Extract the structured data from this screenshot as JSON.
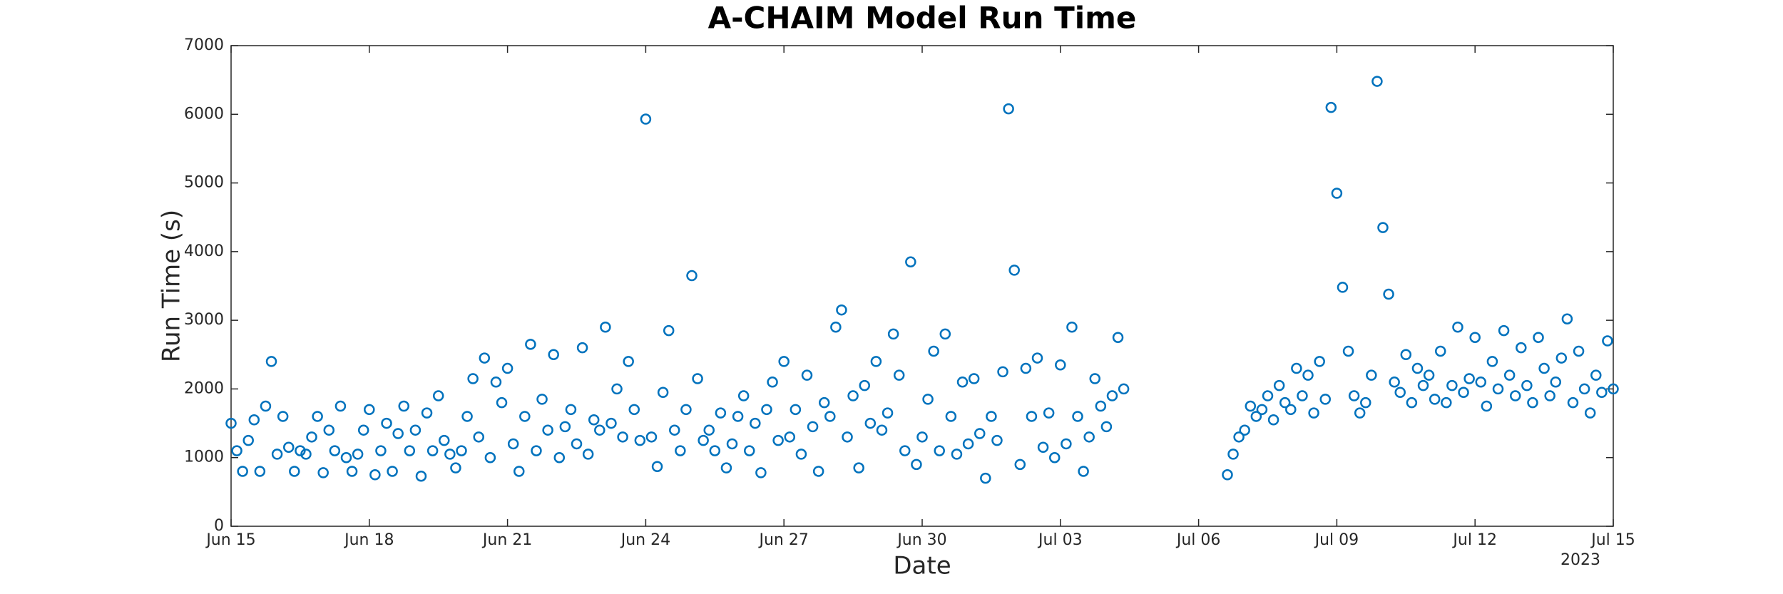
{
  "chart_data": {
    "type": "scatter",
    "title": "A-CHAIM Model Run Time",
    "x_label": "Date",
    "y_label": "Run Time (s)",
    "x_year_label": "2023",
    "color": "#0072bd",
    "grid": false,
    "xlim": [
      "2023-06-15T00",
      "2023-07-15T00"
    ],
    "xticks": [
      {
        "value": "2023-06-15T00",
        "label": "Jun 15"
      },
      {
        "value": "2023-06-18T00",
        "label": "Jun 18"
      },
      {
        "value": "2023-06-21T00",
        "label": "Jun 21"
      },
      {
        "value": "2023-06-24T00",
        "label": "Jun 24"
      },
      {
        "value": "2023-06-27T00",
        "label": "Jun 27"
      },
      {
        "value": "2023-06-30T00",
        "label": "Jun 30"
      },
      {
        "value": "2023-07-03T00",
        "label": "Jul 03"
      },
      {
        "value": "2023-07-06T00",
        "label": "Jul 06"
      },
      {
        "value": "2023-07-09T00",
        "label": "Jul 09"
      },
      {
        "value": "2023-07-12T00",
        "label": "Jul 12"
      },
      {
        "value": "2023-07-15T00",
        "label": "Jul 15"
      }
    ],
    "ylim": [
      0,
      7000
    ],
    "yticks": [
      0,
      1000,
      2000,
      3000,
      4000,
      5000,
      6000,
      7000
    ],
    "x": [
      "2023-06-15T00",
      "2023-06-15T03",
      "2023-06-15T06",
      "2023-06-15T09",
      "2023-06-15T12",
      "2023-06-15T15",
      "2023-06-15T18",
      "2023-06-15T21",
      "2023-06-16T00",
      "2023-06-16T03",
      "2023-06-16T06",
      "2023-06-16T09",
      "2023-06-16T12",
      "2023-06-16T15",
      "2023-06-16T18",
      "2023-06-16T21",
      "2023-06-17T00",
      "2023-06-17T03",
      "2023-06-17T06",
      "2023-06-17T09",
      "2023-06-17T12",
      "2023-06-17T15",
      "2023-06-17T18",
      "2023-06-17T21",
      "2023-06-18T00",
      "2023-06-18T03",
      "2023-06-18T06",
      "2023-06-18T09",
      "2023-06-18T12",
      "2023-06-18T15",
      "2023-06-18T18",
      "2023-06-18T21",
      "2023-06-19T00",
      "2023-06-19T03",
      "2023-06-19T06",
      "2023-06-19T09",
      "2023-06-19T12",
      "2023-06-19T15",
      "2023-06-19T18",
      "2023-06-19T21",
      "2023-06-20T00",
      "2023-06-20T03",
      "2023-06-20T06",
      "2023-06-20T09",
      "2023-06-20T12",
      "2023-06-20T15",
      "2023-06-20T18",
      "2023-06-20T21",
      "2023-06-21T00",
      "2023-06-21T03",
      "2023-06-21T06",
      "2023-06-21T09",
      "2023-06-21T12",
      "2023-06-21T15",
      "2023-06-21T18",
      "2023-06-21T21",
      "2023-06-22T00",
      "2023-06-22T03",
      "2023-06-22T06",
      "2023-06-22T09",
      "2023-06-22T12",
      "2023-06-22T15",
      "2023-06-22T18",
      "2023-06-22T21",
      "2023-06-23T00",
      "2023-06-23T03",
      "2023-06-23T06",
      "2023-06-23T09",
      "2023-06-23T12",
      "2023-06-23T15",
      "2023-06-23T18",
      "2023-06-23T21",
      "2023-06-24T00",
      "2023-06-24T03",
      "2023-06-24T06",
      "2023-06-24T09",
      "2023-06-24T12",
      "2023-06-24T15",
      "2023-06-24T18",
      "2023-06-24T21",
      "2023-06-25T00",
      "2023-06-25T03",
      "2023-06-25T06",
      "2023-06-25T09",
      "2023-06-25T12",
      "2023-06-25T15",
      "2023-06-25T18",
      "2023-06-25T21",
      "2023-06-26T00",
      "2023-06-26T03",
      "2023-06-26T06",
      "2023-06-26T09",
      "2023-06-26T12",
      "2023-06-26T15",
      "2023-06-26T18",
      "2023-06-26T21",
      "2023-06-27T00",
      "2023-06-27T03",
      "2023-06-27T06",
      "2023-06-27T09",
      "2023-06-27T12",
      "2023-06-27T15",
      "2023-06-27T18",
      "2023-06-27T21",
      "2023-06-28T00",
      "2023-06-28T03",
      "2023-06-28T06",
      "2023-06-28T09",
      "2023-06-28T12",
      "2023-06-28T15",
      "2023-06-28T18",
      "2023-06-28T21",
      "2023-06-29T00",
      "2023-06-29T03",
      "2023-06-29T06",
      "2023-06-29T09",
      "2023-06-29T12",
      "2023-06-29T15",
      "2023-06-29T18",
      "2023-06-29T21",
      "2023-06-30T00",
      "2023-06-30T03",
      "2023-06-30T06",
      "2023-06-30T09",
      "2023-06-30T12",
      "2023-06-30T15",
      "2023-06-30T18",
      "2023-06-30T21",
      "2023-07-01T00",
      "2023-07-01T03",
      "2023-07-01T06",
      "2023-07-01T09",
      "2023-07-01T12",
      "2023-07-01T15",
      "2023-07-01T18",
      "2023-07-01T21",
      "2023-07-02T00",
      "2023-07-02T03",
      "2023-07-02T06",
      "2023-07-02T09",
      "2023-07-02T12",
      "2023-07-02T15",
      "2023-07-02T18",
      "2023-07-02T21",
      "2023-07-03T00",
      "2023-07-03T03",
      "2023-07-03T06",
      "2023-07-03T09",
      "2023-07-03T12",
      "2023-07-03T15",
      "2023-07-03T18",
      "2023-07-03T21",
      "2023-07-04T00",
      "2023-07-04T03",
      "2023-07-04T06",
      "2023-07-04T09",
      "2023-07-06T15",
      "2023-07-06T18",
      "2023-07-06T21",
      "2023-07-07T00",
      "2023-07-07T03",
      "2023-07-07T06",
      "2023-07-07T09",
      "2023-07-07T12",
      "2023-07-07T15",
      "2023-07-07T18",
      "2023-07-07T21",
      "2023-07-08T00",
      "2023-07-08T03",
      "2023-07-08T06",
      "2023-07-08T09",
      "2023-07-08T12",
      "2023-07-08T15",
      "2023-07-08T18",
      "2023-07-08T21",
      "2023-07-09T00",
      "2023-07-09T03",
      "2023-07-09T06",
      "2023-07-09T09",
      "2023-07-09T12",
      "2023-07-09T15",
      "2023-07-09T18",
      "2023-07-09T21",
      "2023-07-10T00",
      "2023-07-10T03",
      "2023-07-10T06",
      "2023-07-10T09",
      "2023-07-10T12",
      "2023-07-10T15",
      "2023-07-10T18",
      "2023-07-10T21",
      "2023-07-11T00",
      "2023-07-11T03",
      "2023-07-11T06",
      "2023-07-11T09",
      "2023-07-11T12",
      "2023-07-11T15",
      "2023-07-11T18",
      "2023-07-11T21",
      "2023-07-12T00",
      "2023-07-12T03",
      "2023-07-12T06",
      "2023-07-12T09",
      "2023-07-12T12",
      "2023-07-12T15",
      "2023-07-12T18",
      "2023-07-12T21",
      "2023-07-13T00",
      "2023-07-13T03",
      "2023-07-13T06",
      "2023-07-13T09",
      "2023-07-13T12",
      "2023-07-13T15",
      "2023-07-13T18",
      "2023-07-13T21",
      "2023-07-14T00",
      "2023-07-14T03",
      "2023-07-14T06",
      "2023-07-14T09",
      "2023-07-14T12",
      "2023-07-14T15",
      "2023-07-14T18",
      "2023-07-14T21",
      "2023-07-15T00"
    ],
    "values": [
      1500,
      1100,
      800,
      1250,
      1550,
      800,
      1750,
      2400,
      1050,
      1600,
      1150,
      800,
      1100,
      1050,
      1300,
      1600,
      780,
      1400,
      1100,
      1750,
      1000,
      800,
      1050,
      1400,
      1700,
      750,
      1100,
      1500,
      800,
      1350,
      1750,
      1100,
      1400,
      730,
      1650,
      1100,
      1900,
      1250,
      1050,
      850,
      1100,
      1600,
      2150,
      1300,
      2450,
      1000,
      2100,
      1800,
      2300,
      1200,
      800,
      1600,
      2650,
      1100,
      1850,
      1400,
      2500,
      1000,
      1450,
      1700,
      1200,
      2600,
      1050,
      1550,
      1400,
      2900,
      1500,
      2000,
      1300,
      2400,
      1700,
      1250,
      5930,
      1300,
      870,
      1950,
      2850,
      1400,
      1100,
      1700,
      3650,
      2150,
      1250,
      1400,
      1100,
      1650,
      850,
      1200,
      1600,
      1900,
      1100,
      1500,
      780,
      1700,
      2100,
      1250,
      2400,
      1300,
      1700,
      1050,
      2200,
      1450,
      800,
      1800,
      1600,
      2900,
      3150,
      1300,
      1900,
      850,
      2050,
      1500,
      2400,
      1400,
      1650,
      2800,
      2200,
      1100,
      3850,
      900,
      1300,
      1850,
      2550,
      1100,
      2800,
      1600,
      1050,
      2100,
      1200,
      2150,
      1350,
      700,
      1600,
      1250,
      2250,
      6080,
      3730,
      900,
      2300,
      1600,
      2450,
      1150,
      1650,
      1000,
      2350,
      1200,
      2900,
      1600,
      800,
      1300,
      2150,
      1750,
      1450,
      1900,
      2750,
      2000,
      750,
      1050,
      1300,
      1400,
      1750,
      1600,
      1700,
      1900,
      1550,
      2050,
      1800,
      1700,
      2300,
      1900,
      2200,
      1650,
      2400,
      1850,
      6100,
      4850,
      3480,
      2550,
      1900,
      1650,
      1800,
      2200,
      6480,
      4350,
      3380,
      2100,
      1950,
      2500,
      1800,
      2300,
      2050,
      2200,
      1850,
      2550,
      1800,
      2050,
      2900,
      1950,
      2150,
      2750,
      2100,
      1750,
      2400,
      2000,
      2850,
      2200,
      1900,
      2600,
      2050,
      1800,
      2750,
      2300,
      1900,
      2100,
      2450,
      3020,
      1800,
      2550,
      2000,
      1650,
      2200,
      1950,
      2700,
      2000
    ]
  }
}
